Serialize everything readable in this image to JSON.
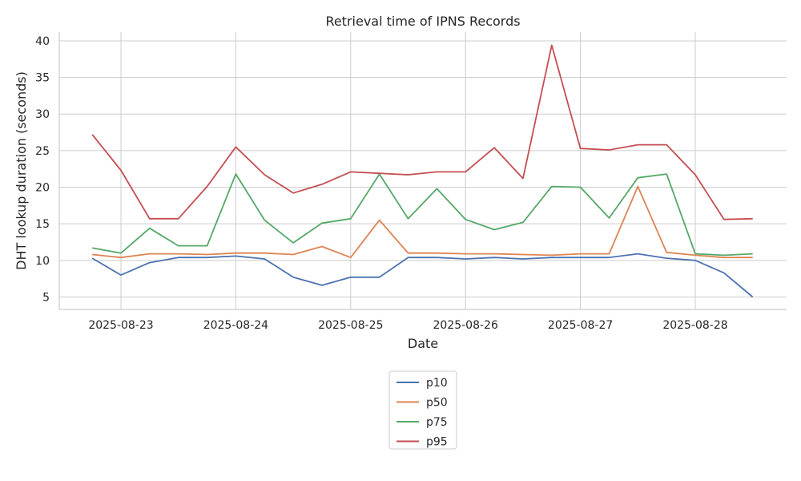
{
  "chart_data": {
    "type": "line",
    "title": "Retrieval time of IPNS Records",
    "xlabel": "Date",
    "ylabel": "DHT lookup duration (seconds)",
    "x_tick_labels": [
      "2025-08-23",
      "2025-08-24",
      "2025-08-25",
      "2025-08-26",
      "2025-08-27",
      "2025-08-28"
    ],
    "x": [
      "2025-08-22 18:00",
      "2025-08-23 00:00",
      "2025-08-23 06:00",
      "2025-08-23 12:00",
      "2025-08-23 18:00",
      "2025-08-24 00:00",
      "2025-08-24 06:00",
      "2025-08-24 12:00",
      "2025-08-24 18:00",
      "2025-08-25 00:00",
      "2025-08-25 06:00",
      "2025-08-25 12:00",
      "2025-08-25 18:00",
      "2025-08-26 00:00",
      "2025-08-26 06:00",
      "2025-08-26 12:00",
      "2025-08-26 18:00",
      "2025-08-27 00:00",
      "2025-08-27 06:00",
      "2025-08-27 12:00",
      "2025-08-27 18:00",
      "2025-08-28 00:00",
      "2025-08-28 06:00",
      "2025-08-28 12:00"
    ],
    "y_ticks": [
      5,
      10,
      15,
      20,
      25,
      30,
      35,
      40
    ],
    "ylim": [
      3.3,
      41.2
    ],
    "grid": true,
    "legend_position": "bottom-center, below plot",
    "series": [
      {
        "name": "p10",
        "color": "#4c72b0",
        "values": [
          10.3,
          8.0,
          9.7,
          10.4,
          10.4,
          10.6,
          10.2,
          7.7,
          6.6,
          7.7,
          7.7,
          10.4,
          10.4,
          10.2,
          10.4,
          10.2,
          10.4,
          10.4,
          10.4,
          10.9,
          10.3,
          10.0,
          8.3,
          5.0
        ]
      },
      {
        "name": "p50",
        "color": "#dd8452",
        "values": [
          10.8,
          10.4,
          10.9,
          10.9,
          10.8,
          11.0,
          11.0,
          10.8,
          11.9,
          10.4,
          15.5,
          11.0,
          11.0,
          10.9,
          10.9,
          10.8,
          10.7,
          10.9,
          10.9,
          20.1,
          11.1,
          10.7,
          10.4,
          10.4
        ]
      },
      {
        "name": "p75",
        "color": "#55a868",
        "values": [
          11.7,
          11.0,
          14.4,
          12.0,
          12.0,
          21.8,
          15.5,
          12.4,
          15.1,
          15.7,
          21.8,
          15.7,
          19.8,
          15.6,
          14.2,
          15.2,
          20.1,
          20.0,
          15.8,
          21.3,
          21.8,
          10.9,
          10.7,
          10.9
        ]
      },
      {
        "name": "p95",
        "color": "#c44e52",
        "values": [
          27.2,
          22.3,
          15.7,
          15.7,
          20.1,
          25.5,
          21.7,
          19.2,
          20.4,
          22.1,
          21.9,
          21.7,
          22.1,
          22.1,
          25.4,
          21.2,
          39.4,
          25.3,
          25.1,
          25.8,
          25.8,
          21.7,
          15.6,
          15.7
        ]
      }
    ]
  }
}
